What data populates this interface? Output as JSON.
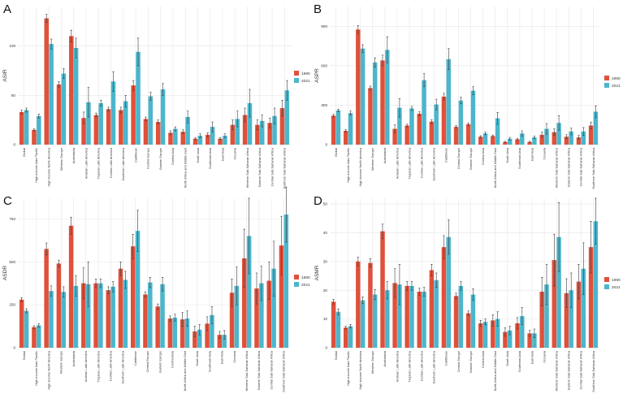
{
  "colors": {
    "y1990": "#e0503a",
    "y2021": "#4bb6cc",
    "grid": "#e6e6e6",
    "panel_bg": "#ffffff",
    "err": "#3a3a3a"
  },
  "chart_data": [
    {
      "type": "bar",
      "panel": "A",
      "ylabel": "ASIR",
      "ylim": [
        0,
        140
      ],
      "yticks": [
        "0",
        "50",
        "100"
      ],
      "legend": [
        "1990",
        "2021"
      ],
      "legend_position": "right",
      "categories": [
        "Global",
        "High-income Asia Pacific",
        "High-income North America",
        "Western Europe",
        "Australasia",
        "Andean Latin America",
        "Tropical Latin America",
        "Central Latin America",
        "Southern Latin America",
        "Caribbean",
        "Central Europe",
        "Eastern Europe",
        "Central Asia",
        "North Africa and Middle East",
        "South Asia",
        "Southeast Asia",
        "East Asia",
        "Oceania",
        "Western Sub-Saharan Africa",
        "Eastern Sub-Saharan Africa",
        "Central Sub-Saharan Africa",
        "Southern Sub-Saharan Africa"
      ],
      "series": [
        {
          "name": "1990",
          "values": [
            33,
            15,
            128,
            61,
            110,
            27,
            30,
            36,
            35,
            60,
            26,
            23,
            12,
            13,
            6,
            10,
            6,
            20,
            30,
            20,
            22,
            37
          ],
          "err": [
            2,
            1,
            4,
            3,
            6,
            6,
            2,
            2,
            3,
            5,
            2,
            2,
            2,
            2,
            1,
            2,
            1,
            5,
            7,
            5,
            5,
            8
          ]
        },
        {
          "name": "2021",
          "values": [
            35,
            29,
            102,
            72,
            98,
            43,
            42,
            64,
            44,
            94,
            49,
            56,
            16,
            28,
            9,
            18,
            9,
            26,
            42,
            24,
            29,
            55
          ],
          "err": [
            2,
            2,
            5,
            5,
            10,
            15,
            3,
            10,
            6,
            14,
            4,
            6,
            2,
            6,
            2,
            5,
            2,
            8,
            14,
            6,
            8,
            10
          ]
        }
      ]
    },
    {
      "type": "bar",
      "panel": "B",
      "ylabel": "ASPR",
      "ylim": [
        0,
        1050
      ],
      "yticks": [
        "0",
        "300",
        "600",
        "900"
      ],
      "legend": [
        "1990",
        "2021"
      ],
      "legend_position": "right",
      "categories": [
        "Global",
        "High-income Asia Pacific",
        "High-income North America",
        "Western Europe",
        "Australasia",
        "Andean Latin America",
        "Tropical Latin America",
        "Central Latin America",
        "Southern Latin America",
        "Caribbean",
        "Central Europe",
        "Eastern Europe",
        "Central Asia",
        "North Africa and Middle East",
        "South Asia",
        "Southeast Asia",
        "East Asia",
        "Oceania",
        "Western Sub-Saharan Africa",
        "Eastern Sub-Saharan Africa",
        "Central Sub-Saharan Africa",
        "Southern Sub-Saharan Africa"
      ],
      "series": [
        {
          "name": "1990",
          "values": [
            220,
            105,
            875,
            430,
            640,
            120,
            145,
            235,
            175,
            365,
            135,
            155,
            60,
            65,
            20,
            40,
            20,
            75,
            95,
            60,
            55,
            145
          ],
          "err": [
            10,
            8,
            30,
            15,
            40,
            30,
            10,
            15,
            15,
            25,
            10,
            10,
            8,
            8,
            5,
            8,
            5,
            20,
            25,
            15,
            15,
            25
          ]
        },
        {
          "name": "2021",
          "values": [
            260,
            240,
            730,
            625,
            720,
            280,
            275,
            490,
            305,
            650,
            335,
            410,
            85,
            200,
            45,
            85,
            55,
            120,
            165,
            100,
            100,
            250
          ],
          "err": [
            10,
            15,
            30,
            35,
            100,
            70,
            15,
            50,
            40,
            80,
            25,
            30,
            10,
            45,
            10,
            20,
            10,
            40,
            55,
            25,
            30,
            45
          ]
        }
      ]
    },
    {
      "type": "bar",
      "panel": "C",
      "ylabel": "ASDR",
      "ylim": [
        0,
        870
      ],
      "yticks": [
        "0",
        "250",
        "500",
        "750"
      ],
      "legend": [
        "1990",
        "2021"
      ],
      "legend_position": "right",
      "categories": [
        "Global",
        "High-income Asia Pacific",
        "High-income North America",
        "Western Europe",
        "Australasia",
        "Andean Latin America",
        "Tropical Latin America",
        "Central Latin America",
        "Southern Latin America",
        "Caribbean",
        "Central Europe",
        "Eastern Europe",
        "Central Asia",
        "North Africa and Middle East",
        "South Asia",
        "Southeast Asia",
        "East Asia",
        "Oceania",
        "Western Sub-Saharan Africa",
        "Eastern Sub-Saharan Africa",
        "Central Sub-Saharan Africa",
        "Southern Sub-Saharan Africa"
      ],
      "series": [
        {
          "name": "1990",
          "values": [
            280,
            120,
            575,
            490,
            710,
            375,
            375,
            335,
            460,
            590,
            310,
            240,
            170,
            165,
            95,
            140,
            75,
            320,
            520,
            345,
            390,
            595
          ],
          "err": [
            12,
            8,
            35,
            20,
            50,
            90,
            25,
            20,
            40,
            70,
            15,
            15,
            15,
            40,
            30,
            40,
            20,
            80,
            170,
            90,
            110,
            170
          ]
        },
        {
          "name": "2021",
          "values": [
            215,
            130,
            330,
            325,
            360,
            370,
            375,
            355,
            395,
            680,
            380,
            370,
            175,
            170,
            105,
            190,
            75,
            360,
            650,
            375,
            460,
            775
          ],
          "err": [
            12,
            10,
            30,
            30,
            60,
            130,
            25,
            30,
            50,
            120,
            30,
            40,
            20,
            45,
            30,
            50,
            25,
            110,
            220,
            100,
            160,
            160
          ]
        }
      ]
    },
    {
      "type": "bar",
      "panel": "D",
      "ylabel": "ASMR",
      "ylim": [
        0,
        52
      ],
      "yticks": [
        "0",
        "10",
        "20",
        "30",
        "40",
        "50"
      ],
      "legend": [
        "1990",
        "2021"
      ],
      "legend_position": "right",
      "categories": [
        "Global",
        "High-income Asia Pacific",
        "High-income North America",
        "Western Europe",
        "Australasia",
        "Andean Latin America",
        "Tropical Latin America",
        "Central Latin America",
        "Southern Latin America",
        "Caribbean",
        "Central Europe",
        "Eastern Europe",
        "Central Asia",
        "North Africa and Middle East",
        "South Asia",
        "Southeast Asia",
        "East Asia",
        "Oceania",
        "Western Sub-Saharan Africa",
        "Eastern Sub-Saharan Africa",
        "Central Sub-Saharan Africa",
        "Southern Sub-Saharan Africa"
      ],
      "series": [
        {
          "name": "1990",
          "values": [
            16,
            7,
            30,
            29.5,
            40.5,
            22.5,
            21.5,
            19.5,
            27,
            35,
            18,
            12,
            8.5,
            9.5,
            5.5,
            8.5,
            5,
            19.5,
            30.5,
            19,
            23,
            35
          ],
          "err": [
            0.8,
            0.5,
            1.5,
            1.5,
            2.5,
            5,
            1.5,
            1.2,
            2,
            4,
            1,
            0.8,
            1,
            2,
            1.5,
            2,
            1,
            5,
            9,
            5,
            6,
            9
          ]
        },
        {
          "name": "2021",
          "values": [
            12.5,
            7.5,
            16.5,
            18.5,
            20,
            22,
            21.5,
            19.5,
            23.5,
            38.5,
            21.5,
            18.5,
            9,
            10,
            6,
            11,
            5,
            22,
            38.5,
            20,
            27.5,
            44
          ],
          "err": [
            1,
            0.6,
            1.2,
            1.8,
            3,
            7,
            1.5,
            1.5,
            2.5,
            6,
            1.5,
            2,
            1,
            2.5,
            1.5,
            3,
            1.5,
            7,
            12,
            6,
            9,
            8
          ]
        }
      ]
    }
  ]
}
